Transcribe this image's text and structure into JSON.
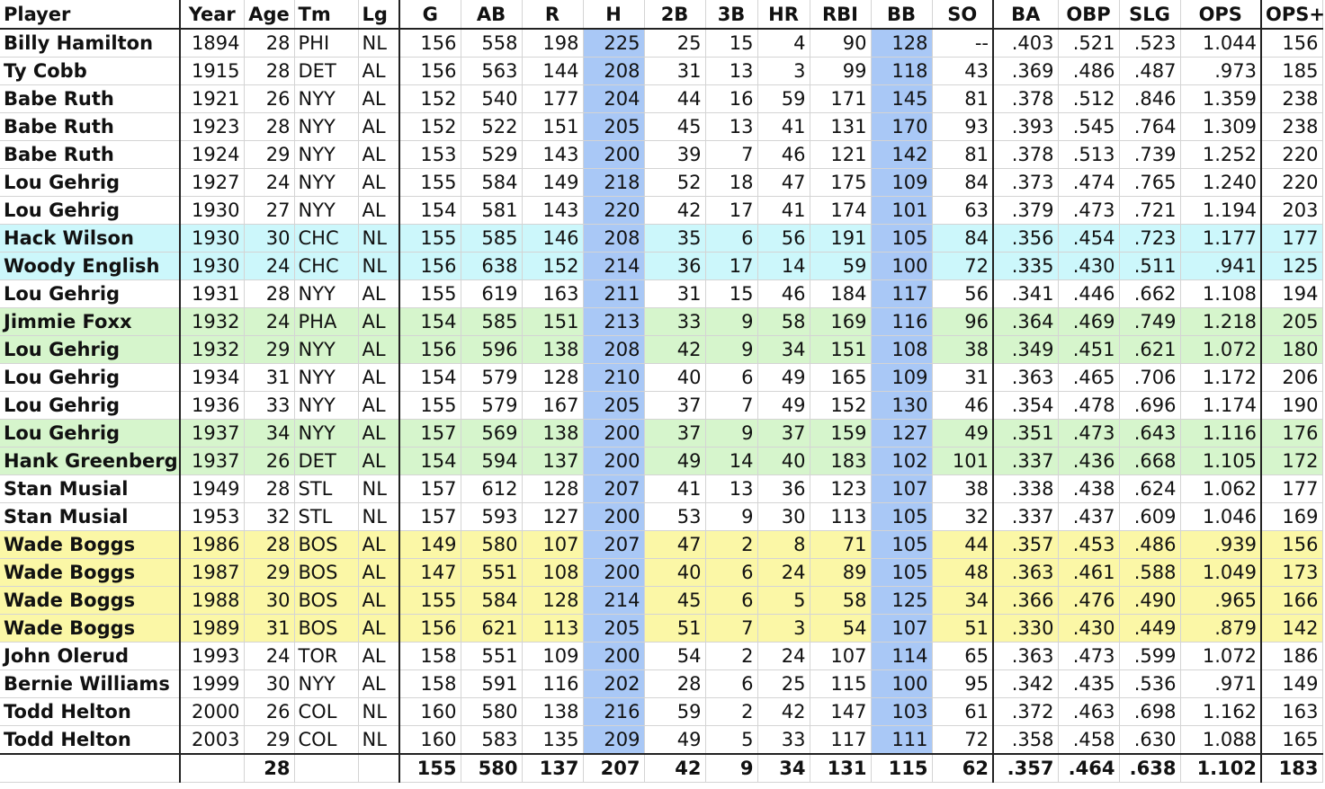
{
  "columns": [
    "Player",
    "Year",
    "Age",
    "Tm",
    "Lg",
    "G",
    "AB",
    "R",
    "H",
    "2B",
    "3B",
    "HR",
    "RBI",
    "BB",
    "SO",
    "BA",
    "OBP",
    "SLG",
    "OPS",
    "OPS+"
  ],
  "highlight_color": "#a9c8f6",
  "group_colors": {
    "cyan": "#ccf7fb",
    "green": "#d6f5cc",
    "yellow": "#fbf7a6"
  },
  "rows": [
    {
      "group": "",
      "cells": [
        "Billy Hamilton",
        "1894",
        "28",
        "PHI",
        "NL",
        "156",
        "558",
        "198",
        "225",
        "25",
        "15",
        "4",
        "90",
        "128",
        "--",
        ".403",
        ".521",
        ".523",
        "1.044",
        "156"
      ]
    },
    {
      "group": "",
      "cells": [
        "Ty Cobb",
        "1915",
        "28",
        "DET",
        "AL",
        "156",
        "563",
        "144",
        "208",
        "31",
        "13",
        "3",
        "99",
        "118",
        "43",
        ".369",
        ".486",
        ".487",
        ".973",
        "185"
      ]
    },
    {
      "group": "",
      "cells": [
        "Babe Ruth",
        "1921",
        "26",
        "NYY",
        "AL",
        "152",
        "540",
        "177",
        "204",
        "44",
        "16",
        "59",
        "171",
        "145",
        "81",
        ".378",
        ".512",
        ".846",
        "1.359",
        "238"
      ]
    },
    {
      "group": "",
      "cells": [
        "Babe Ruth",
        "1923",
        "28",
        "NYY",
        "AL",
        "152",
        "522",
        "151",
        "205",
        "45",
        "13",
        "41",
        "131",
        "170",
        "93",
        ".393",
        ".545",
        ".764",
        "1.309",
        "238"
      ]
    },
    {
      "group": "",
      "cells": [
        "Babe Ruth",
        "1924",
        "29",
        "NYY",
        "AL",
        "153",
        "529",
        "143",
        "200",
        "39",
        "7",
        "46",
        "121",
        "142",
        "81",
        ".378",
        ".513",
        ".739",
        "1.252",
        "220"
      ]
    },
    {
      "group": "",
      "cells": [
        "Lou Gehrig",
        "1927",
        "24",
        "NYY",
        "AL",
        "155",
        "584",
        "149",
        "218",
        "52",
        "18",
        "47",
        "175",
        "109",
        "84",
        ".373",
        ".474",
        ".765",
        "1.240",
        "220"
      ]
    },
    {
      "group": "",
      "cells": [
        "Lou Gehrig",
        "1930",
        "27",
        "NYY",
        "AL",
        "154",
        "581",
        "143",
        "220",
        "42",
        "17",
        "41",
        "174",
        "101",
        "63",
        ".379",
        ".473",
        ".721",
        "1.194",
        "203"
      ]
    },
    {
      "group": "cyan",
      "cells": [
        "Hack Wilson",
        "1930",
        "30",
        "CHC",
        "NL",
        "155",
        "585",
        "146",
        "208",
        "35",
        "6",
        "56",
        "191",
        "105",
        "84",
        ".356",
        ".454",
        ".723",
        "1.177",
        "177"
      ]
    },
    {
      "group": "cyan",
      "cells": [
        "Woody English",
        "1930",
        "24",
        "CHC",
        "NL",
        "156",
        "638",
        "152",
        "214",
        "36",
        "17",
        "14",
        "59",
        "100",
        "72",
        ".335",
        ".430",
        ".511",
        ".941",
        "125"
      ]
    },
    {
      "group": "",
      "cells": [
        "Lou Gehrig",
        "1931",
        "28",
        "NYY",
        "AL",
        "155",
        "619",
        "163",
        "211",
        "31",
        "15",
        "46",
        "184",
        "117",
        "56",
        ".341",
        ".446",
        ".662",
        "1.108",
        "194"
      ]
    },
    {
      "group": "green",
      "cells": [
        "Jimmie Foxx",
        "1932",
        "24",
        "PHA",
        "AL",
        "154",
        "585",
        "151",
        "213",
        "33",
        "9",
        "58",
        "169",
        "116",
        "96",
        ".364",
        ".469",
        ".749",
        "1.218",
        "205"
      ]
    },
    {
      "group": "green",
      "cells": [
        "Lou Gehrig",
        "1932",
        "29",
        "NYY",
        "AL",
        "156",
        "596",
        "138",
        "208",
        "42",
        "9",
        "34",
        "151",
        "108",
        "38",
        ".349",
        ".451",
        ".621",
        "1.072",
        "180"
      ]
    },
    {
      "group": "",
      "cells": [
        "Lou Gehrig",
        "1934",
        "31",
        "NYY",
        "AL",
        "154",
        "579",
        "128",
        "210",
        "40",
        "6",
        "49",
        "165",
        "109",
        "31",
        ".363",
        ".465",
        ".706",
        "1.172",
        "206"
      ]
    },
    {
      "group": "",
      "cells": [
        "Lou Gehrig",
        "1936",
        "33",
        "NYY",
        "AL",
        "155",
        "579",
        "167",
        "205",
        "37",
        "7",
        "49",
        "152",
        "130",
        "46",
        ".354",
        ".478",
        ".696",
        "1.174",
        "190"
      ]
    },
    {
      "group": "green",
      "cells": [
        "Lou Gehrig",
        "1937",
        "34",
        "NYY",
        "AL",
        "157",
        "569",
        "138",
        "200",
        "37",
        "9",
        "37",
        "159",
        "127",
        "49",
        ".351",
        ".473",
        ".643",
        "1.116",
        "176"
      ]
    },
    {
      "group": "green",
      "cells": [
        "Hank Greenberg",
        "1937",
        "26",
        "DET",
        "AL",
        "154",
        "594",
        "137",
        "200",
        "49",
        "14",
        "40",
        "183",
        "102",
        "101",
        ".337",
        ".436",
        ".668",
        "1.105",
        "172"
      ]
    },
    {
      "group": "",
      "cells": [
        "Stan Musial",
        "1949",
        "28",
        "STL",
        "NL",
        "157",
        "612",
        "128",
        "207",
        "41",
        "13",
        "36",
        "123",
        "107",
        "38",
        ".338",
        ".438",
        ".624",
        "1.062",
        "177"
      ]
    },
    {
      "group": "",
      "cells": [
        "Stan Musial",
        "1953",
        "32",
        "STL",
        "NL",
        "157",
        "593",
        "127",
        "200",
        "53",
        "9",
        "30",
        "113",
        "105",
        "32",
        ".337",
        ".437",
        ".609",
        "1.046",
        "169"
      ]
    },
    {
      "group": "yellow",
      "cells": [
        "Wade Boggs",
        "1986",
        "28",
        "BOS",
        "AL",
        "149",
        "580",
        "107",
        "207",
        "47",
        "2",
        "8",
        "71",
        "105",
        "44",
        ".357",
        ".453",
        ".486",
        ".939",
        "156"
      ]
    },
    {
      "group": "yellow",
      "cells": [
        "Wade Boggs",
        "1987",
        "29",
        "BOS",
        "AL",
        "147",
        "551",
        "108",
        "200",
        "40",
        "6",
        "24",
        "89",
        "105",
        "48",
        ".363",
        ".461",
        ".588",
        "1.049",
        "173"
      ]
    },
    {
      "group": "yellow",
      "cells": [
        "Wade Boggs",
        "1988",
        "30",
        "BOS",
        "AL",
        "155",
        "584",
        "128",
        "214",
        "45",
        "6",
        "5",
        "58",
        "125",
        "34",
        ".366",
        ".476",
        ".490",
        ".965",
        "166"
      ]
    },
    {
      "group": "yellow",
      "cells": [
        "Wade Boggs",
        "1989",
        "31",
        "BOS",
        "AL",
        "156",
        "621",
        "113",
        "205",
        "51",
        "7",
        "3",
        "54",
        "107",
        "51",
        ".330",
        ".430",
        ".449",
        ".879",
        "142"
      ]
    },
    {
      "group": "",
      "cells": [
        "John Olerud",
        "1993",
        "24",
        "TOR",
        "AL",
        "158",
        "551",
        "109",
        "200",
        "54",
        "2",
        "24",
        "107",
        "114",
        "65",
        ".363",
        ".473",
        ".599",
        "1.072",
        "186"
      ]
    },
    {
      "group": "",
      "cells": [
        "Bernie Williams",
        "1999",
        "30",
        "NYY",
        "AL",
        "158",
        "591",
        "116",
        "202",
        "28",
        "6",
        "25",
        "115",
        "100",
        "95",
        ".342",
        ".435",
        ".536",
        ".971",
        "149"
      ]
    },
    {
      "group": "",
      "cells": [
        "Todd Helton",
        "2000",
        "26",
        "COL",
        "NL",
        "160",
        "580",
        "138",
        "216",
        "59",
        "2",
        "42",
        "147",
        "103",
        "61",
        ".372",
        ".463",
        ".698",
        "1.162",
        "163"
      ]
    },
    {
      "group": "",
      "cells": [
        "Todd Helton",
        "2003",
        "29",
        "COL",
        "NL",
        "160",
        "583",
        "135",
        "209",
        "49",
        "5",
        "33",
        "117",
        "111",
        "72",
        ".358",
        ".458",
        ".630",
        "1.088",
        "165"
      ]
    }
  ],
  "totals": [
    "",
    "",
    "28",
    "",
    "",
    "155",
    "580",
    "137",
    "207",
    "42",
    "9",
    "34",
    "131",
    "115",
    "62",
    ".357",
    ".464",
    ".638",
    "1.102",
    "183"
  ]
}
